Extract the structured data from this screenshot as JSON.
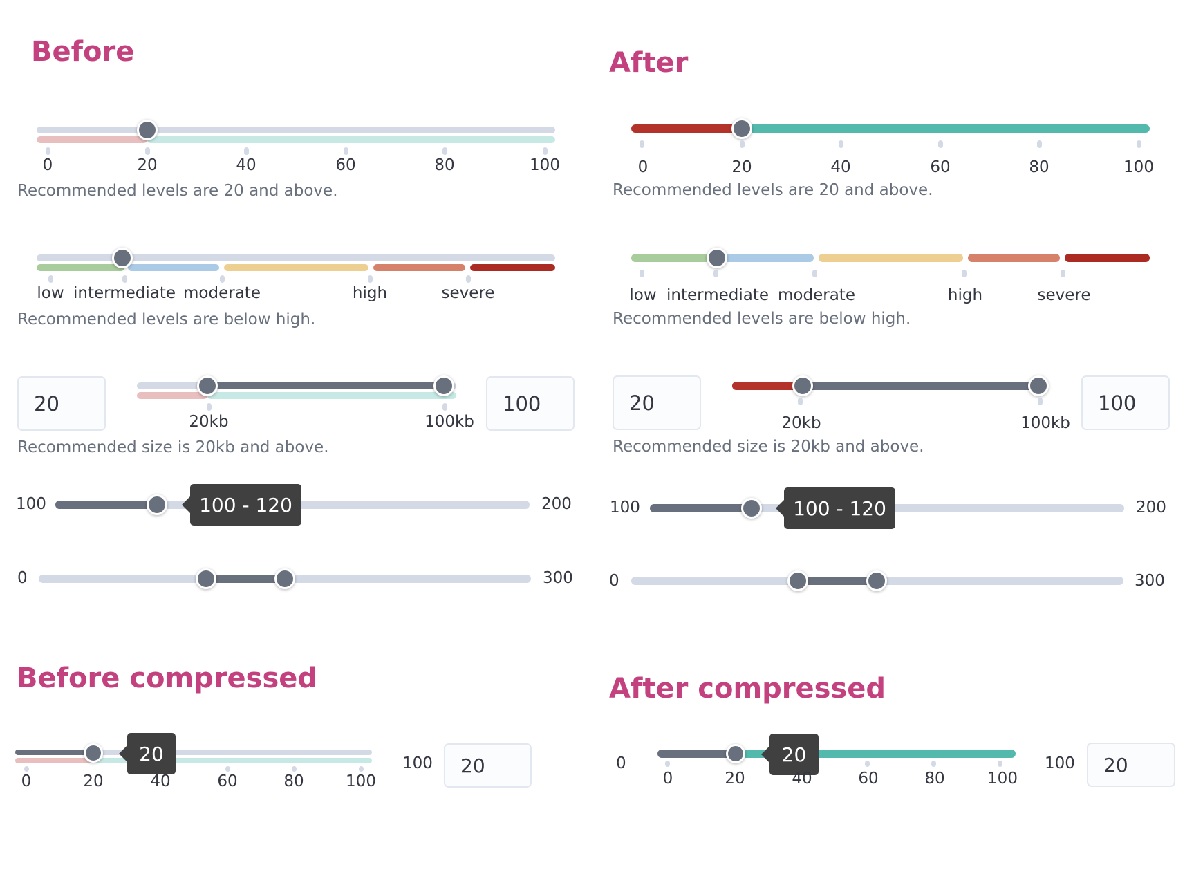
{
  "headings": {
    "before": "Before",
    "after": "After",
    "before_compressed": "Before compressed",
    "after_compressed": "After compressed"
  },
  "numeric_slider": {
    "value": 20,
    "ticks": [
      "0",
      "20",
      "40",
      "60",
      "80",
      "100"
    ],
    "help": "Recommended levels are 20 and above."
  },
  "level_slider": {
    "value": "intermediate",
    "labels": [
      "low",
      "intermediate",
      "moderate",
      "high",
      "severe"
    ],
    "help": "Recommended levels are below high."
  },
  "size_range": {
    "min_input": "20",
    "max_input": "100",
    "range": [
      20,
      100
    ],
    "tick_labels": [
      "20kb",
      "100kb"
    ],
    "help": "Recommended size is 20kb and above."
  },
  "tooltip_range": {
    "min_label": "100",
    "max_label": "200",
    "range": [
      100,
      120
    ],
    "tooltip": "100 - 120"
  },
  "dual_range": {
    "min_label": "0",
    "max_label": "300",
    "range": [
      100,
      150
    ]
  },
  "compressed_before": {
    "value": 20,
    "tooltip": "20",
    "ticks": [
      "0",
      "20",
      "40",
      "60",
      "80",
      "100"
    ],
    "max_label": "100",
    "input": "20"
  },
  "compressed_after": {
    "value": 20,
    "tooltip": "20",
    "min_label": "0",
    "ticks": [
      "0",
      "20",
      "40",
      "60",
      "80",
      "100"
    ],
    "max_label": "100",
    "input": "20"
  },
  "colors": {
    "heading": "#c2417e",
    "thumb": "#69707d",
    "track": "#d3dae6",
    "danger": "#b3332b",
    "success": "#54b9ad",
    "tooltip_bg": "#404040"
  }
}
